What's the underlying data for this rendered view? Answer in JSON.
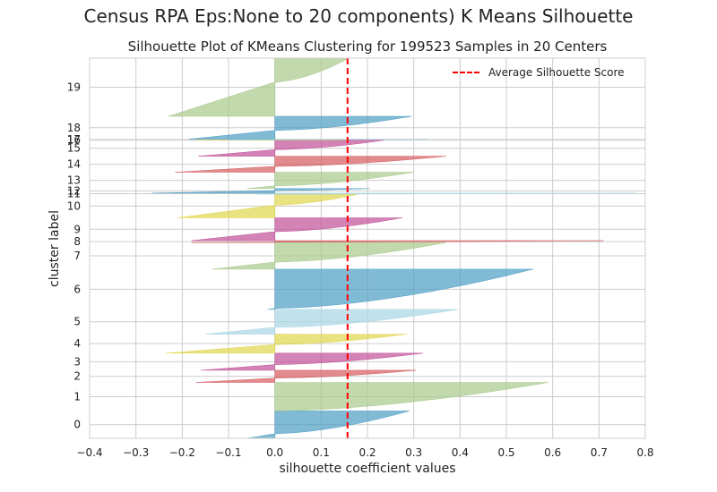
{
  "figure": {
    "suptitle": "Census RPA Eps:None to 20 components) K Means Silhouette"
  },
  "chart_data": {
    "type": "area",
    "orientation": "horizontal",
    "title": "Silhouette Plot of KMeans Clustering for 199523 Samples in 20 Centers",
    "xlabel": "silhouette coefficient values",
    "ylabel": "cluster label",
    "xlim": [
      -0.4,
      0.8
    ],
    "xticks": [
      -0.4,
      -0.3,
      -0.2,
      -0.1,
      0.0,
      0.1,
      0.2,
      0.3,
      0.4,
      0.5,
      0.6,
      0.7,
      0.8
    ],
    "xtick_labels": [
      "−0.4",
      "−0.3",
      "−0.2",
      "−0.1",
      "0.0",
      "0.1",
      "0.2",
      "0.3",
      "0.4",
      "0.5",
      "0.6",
      "0.7",
      "0.8"
    ],
    "grid": true,
    "legend": {
      "position": "top-right",
      "entries": [
        "Average Silhouette Score"
      ]
    },
    "average_silhouette_score": 0.157,
    "average_line_color": "#ff0000",
    "palette": [
      "#4c9dc3",
      "#a8c98a",
      "#d45a5e",
      "#c04f97",
      "#e0d54a",
      "#a6d5e4"
    ],
    "clusters": [
      {
        "label": "0",
        "color": "#4c9dc3",
        "min": -0.06,
        "max": 0.29,
        "start": 0.0,
        "size": 0.072
      },
      {
        "label": "1",
        "color": "#a8c98a",
        "min": 0.0,
        "max": 0.59,
        "start": 0.072,
        "size": 0.075
      },
      {
        "label": "2",
        "color": "#d45a5e",
        "min": -0.17,
        "max": 0.305,
        "start": 0.147,
        "size": 0.032
      },
      {
        "label": "3",
        "color": "#c04f97",
        "min": -0.16,
        "max": 0.32,
        "start": 0.179,
        "size": 0.045
      },
      {
        "label": "4",
        "color": "#e0d54a",
        "min": -0.235,
        "max": 0.285,
        "start": 0.224,
        "size": 0.05
      },
      {
        "label": "5",
        "color": "#a6d5e4",
        "min": -0.15,
        "max": 0.395,
        "start": 0.274,
        "size": 0.065
      },
      {
        "label": "6",
        "color": "#4c9dc3",
        "min": -0.015,
        "max": 0.558,
        "start": 0.339,
        "size": 0.106
      },
      {
        "label": "7",
        "color": "#a8c98a",
        "min": -0.135,
        "max": 0.37,
        "start": 0.445,
        "size": 0.07
      },
      {
        "label": "8",
        "color": "#d45a5e",
        "min": -0.18,
        "max": 0.71,
        "start": 0.515,
        "size": 0.005
      },
      {
        "label": "9",
        "color": "#c04f97",
        "min": -0.18,
        "max": 0.275,
        "start": 0.52,
        "size": 0.06
      },
      {
        "label": "10",
        "color": "#e0d54a",
        "min": -0.21,
        "max": 0.18,
        "start": 0.58,
        "size": 0.062
      },
      {
        "label": "11",
        "color": "#a6d5e4",
        "min": -0.04,
        "max": 0.78,
        "start": 0.642,
        "size": 0.003
      },
      {
        "label": "12",
        "color": "#4c9dc3",
        "min": -0.265,
        "max": 0.205,
        "start": 0.645,
        "size": 0.012
      },
      {
        "label": "13",
        "color": "#a8c98a",
        "min": -0.06,
        "max": 0.3,
        "start": 0.657,
        "size": 0.043
      },
      {
        "label": "14",
        "color": "#d45a5e",
        "min": -0.215,
        "max": 0.37,
        "start": 0.7,
        "size": 0.042
      },
      {
        "label": "15",
        "color": "#c04f97",
        "min": -0.165,
        "max": 0.235,
        "start": 0.742,
        "size": 0.042
      },
      {
        "label": "16",
        "color": "#e0d54a",
        "min": -0.17,
        "max": 0.16,
        "start": 0.784,
        "size": 0.001
      },
      {
        "label": "17",
        "color": "#a6d5e4",
        "min": -0.1,
        "max": 0.33,
        "start": 0.785,
        "size": 0.002
      },
      {
        "label": "18",
        "color": "#4c9dc3",
        "min": -0.185,
        "max": 0.295,
        "start": 0.787,
        "size": 0.06
      },
      {
        "label": "19",
        "color": "#a8c98a",
        "min": -0.23,
        "max": 0.16,
        "start": 0.847,
        "size": 0.153
      }
    ]
  }
}
